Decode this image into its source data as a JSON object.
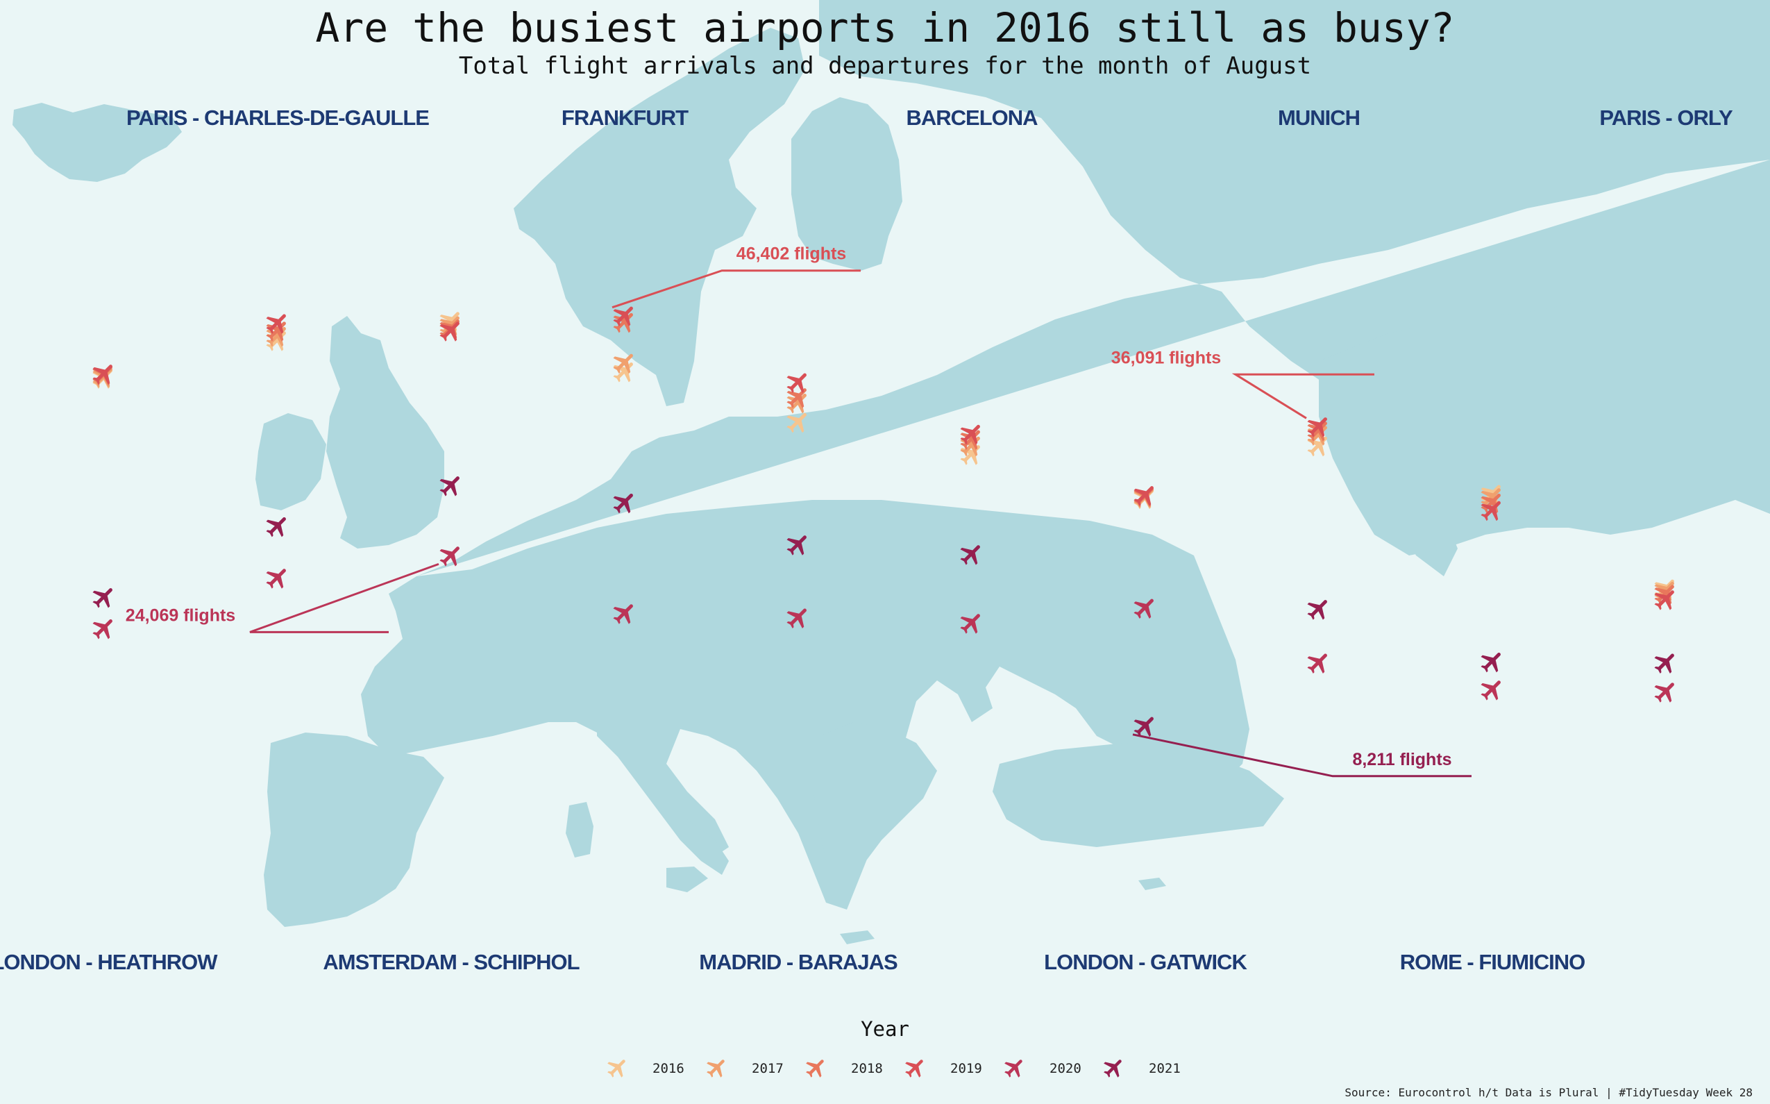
{
  "title": "Are the busiest airports in 2016 still as busy?",
  "subtitle": "Total flight arrivals and departures for the month of August",
  "source": "Source: Eurocontrol h/t Data is Plural | #TidyTuesday Week 28",
  "colors": {
    "background": "#eaf6f6",
    "land": "#afd8de",
    "label": "#1d3a73",
    "years": {
      "2016": "#f6c48e",
      "2017": "#f0a06e",
      "2018": "#e8775c",
      "2019": "#d94f55",
      "2020": "#bb3557",
      "2021": "#951f50"
    }
  },
  "legend": {
    "title": "Year",
    "years": [
      "2016",
      "2017",
      "2018",
      "2019",
      "2020",
      "2021"
    ],
    "icon": "airplane-icon"
  },
  "chart_data": {
    "type": "scatter",
    "marker": "airplane-icon",
    "title": "Are the busiest airports in 2016 still as busy?",
    "subtitle": "Total flight arrivals and departures for the month of August",
    "x_unit": "year",
    "y_unit": "flights",
    "y_range_estimated": [
      6000,
      48000
    ],
    "series": [
      {
        "airport": "LONDON - HEATHROW",
        "values": [
          {
            "year": "2016",
            "flights": 40600
          },
          {
            "year": "2017",
            "flights": 40700
          },
          {
            "year": "2018",
            "flights": 40900
          },
          {
            "year": "2019",
            "flights": 41000
          },
          {
            "year": "2020",
            "flights": 17300
          },
          {
            "year": "2021",
            "flights": 20200
          }
        ]
      },
      {
        "airport": "PARIS - CHARLES-DE-GAULLE",
        "values": [
          {
            "year": "2016",
            "flights": 44100
          },
          {
            "year": "2017",
            "flights": 44500
          },
          {
            "year": "2018",
            "flights": 45000
          },
          {
            "year": "2019",
            "flights": 45700
          },
          {
            "year": "2020",
            "flights": 22000
          },
          {
            "year": "2021",
            "flights": 26800
          }
        ]
      },
      {
        "airport": "AMSTERDAM - SCHIPHOL",
        "values": [
          {
            "year": "2016",
            "flights": 45900
          },
          {
            "year": "2017",
            "flights": 45500
          },
          {
            "year": "2018",
            "flights": 45200
          },
          {
            "year": "2019",
            "flights": 45000
          },
          {
            "year": "2020",
            "flights": 24069
          },
          {
            "year": "2021",
            "flights": 30600
          }
        ]
      },
      {
        "airport": "FRANKFURT",
        "values": [
          {
            "year": "2016",
            "flights": 41200
          },
          {
            "year": "2017",
            "flights": 42000
          },
          {
            "year": "2018",
            "flights": 45800
          },
          {
            "year": "2019",
            "flights": 46402
          },
          {
            "year": "2020",
            "flights": 18700
          },
          {
            "year": "2021",
            "flights": 29000
          }
        ]
      },
      {
        "airport": "MADRID - BARAJAS",
        "values": [
          {
            "year": "2016",
            "flights": 36500
          },
          {
            "year": "2017",
            "flights": 38300
          },
          {
            "year": "2018",
            "flights": 38800
          },
          {
            "year": "2019",
            "flights": 40200
          },
          {
            "year": "2020",
            "flights": 18300
          },
          {
            "year": "2021",
            "flights": 25100
          }
        ]
      },
      {
        "airport": "BARCELONA",
        "values": [
          {
            "year": "2016",
            "flights": 33500
          },
          {
            "year": "2017",
            "flights": 34300
          },
          {
            "year": "2018",
            "flights": 34900
          },
          {
            "year": "2019",
            "flights": 35400
          },
          {
            "year": "2020",
            "flights": 17800
          },
          {
            "year": "2021",
            "flights": 24200
          }
        ]
      },
      {
        "airport": "LONDON - GATWICK",
        "values": [
          {
            "year": "2016",
            "flights": 29400
          },
          {
            "year": "2017",
            "flights": 29500
          },
          {
            "year": "2018",
            "flights": 29600
          },
          {
            "year": "2019",
            "flights": 29700
          },
          {
            "year": "2020",
            "flights": 19200
          },
          {
            "year": "2021",
            "flights": 8211
          }
        ]
      },
      {
        "airport": "MUNICH",
        "values": [
          {
            "year": "2016",
            "flights": 34300
          },
          {
            "year": "2017",
            "flights": 35300
          },
          {
            "year": "2018",
            "flights": 35700
          },
          {
            "year": "2019",
            "flights": 36091
          },
          {
            "year": "2020",
            "flights": 14100
          },
          {
            "year": "2021",
            "flights": 19100
          }
        ]
      },
      {
        "airport": "ROME - FIUMICINO",
        "values": [
          {
            "year": "2016",
            "flights": 29800
          },
          {
            "year": "2017",
            "flights": 29500
          },
          {
            "year": "2018",
            "flights": 29000
          },
          {
            "year": "2019",
            "flights": 28300
          },
          {
            "year": "2020",
            "flights": 11600
          },
          {
            "year": "2021",
            "flights": 14200
          }
        ]
      },
      {
        "airport": "PARIS - ORLY",
        "values": [
          {
            "year": "2016",
            "flights": 21000
          },
          {
            "year": "2017",
            "flights": 20800
          },
          {
            "year": "2018",
            "flights": 20500
          },
          {
            "year": "2019",
            "flights": 20000
          },
          {
            "year": "2020",
            "flights": 11400
          },
          {
            "year": "2021",
            "flights": 14100
          }
        ]
      }
    ],
    "annotations": [
      {
        "text": "46,402 flights",
        "airport": "FRANKFURT",
        "year": "2019"
      },
      {
        "text": "36,091 flights",
        "airport": "MUNICH",
        "year": "2019"
      },
      {
        "text": "24,069 flights",
        "airport": "AMSTERDAM - SCHIPHOL",
        "year": "2020"
      },
      {
        "text": "8,211 flights",
        "airport": "LONDON - GATWICK",
        "year": "2021"
      }
    ]
  }
}
